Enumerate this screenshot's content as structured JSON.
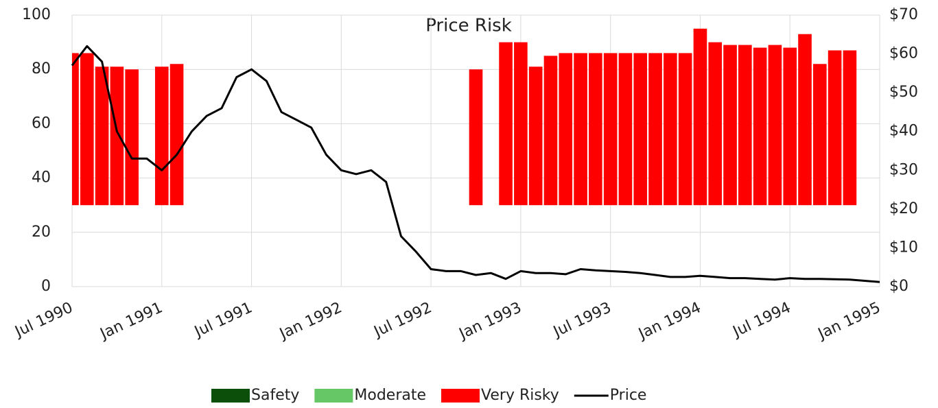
{
  "chart_data": {
    "type": "bar-line",
    "title": "Price Risk",
    "x": [
      "1990-07",
      "1990-08",
      "1990-09",
      "1990-10",
      "1990-11",
      "1990-12",
      "1991-01",
      "1991-02",
      "1991-03",
      "1991-04",
      "1991-05",
      "1991-06",
      "1991-07",
      "1991-08",
      "1991-09",
      "1991-10",
      "1991-11",
      "1991-12",
      "1992-01",
      "1992-02",
      "1992-03",
      "1992-04",
      "1992-05",
      "1992-06",
      "1992-07",
      "1992-08",
      "1992-09",
      "1992-10",
      "1992-11",
      "1992-12",
      "1993-01",
      "1993-02",
      "1993-03",
      "1993-04",
      "1993-05",
      "1993-06",
      "1993-07",
      "1993-08",
      "1993-09",
      "1993-10",
      "1993-11",
      "1993-12",
      "1994-01",
      "1994-02",
      "1994-03",
      "1994-04",
      "1994-05",
      "1994-06",
      "1994-07",
      "1994-08",
      "1994-09",
      "1994-10",
      "1994-11",
      "1994-12",
      "1995-01"
    ],
    "series": [
      {
        "name": "Safety",
        "color": "#0b4f0b",
        "kind": "bar",
        "values": [
          null,
          null,
          null,
          null,
          null,
          null,
          null,
          null,
          null,
          null,
          null,
          null,
          null,
          null,
          null,
          null,
          null,
          null,
          null,
          null,
          null,
          null,
          null,
          null,
          null,
          null,
          null,
          null,
          null,
          null,
          null,
          null,
          null,
          null,
          null,
          null,
          null,
          null,
          null,
          null,
          null,
          null,
          null,
          null,
          null,
          null,
          null,
          null,
          null,
          null,
          null,
          null,
          null,
          null,
          null
        ]
      },
      {
        "name": "Moderate",
        "color": "#66c766",
        "kind": "bar",
        "values": [
          null,
          null,
          null,
          null,
          null,
          null,
          null,
          null,
          null,
          null,
          null,
          null,
          null,
          null,
          null,
          null,
          null,
          null,
          null,
          null,
          null,
          null,
          null,
          null,
          null,
          null,
          null,
          null,
          null,
          null,
          null,
          null,
          null,
          null,
          null,
          null,
          null,
          null,
          null,
          null,
          null,
          null,
          null,
          null,
          null,
          null,
          null,
          null,
          null,
          null,
          null,
          null,
          null,
          null,
          null
        ]
      },
      {
        "name": "Very Risky",
        "color": "#ff0000",
        "kind": "bar",
        "values": [
          86,
          86,
          81,
          81,
          80,
          null,
          81,
          82,
          null,
          null,
          null,
          null,
          null,
          null,
          null,
          null,
          null,
          null,
          null,
          null,
          null,
          null,
          null,
          null,
          null,
          null,
          null,
          80,
          null,
          90,
          90,
          81,
          85,
          86,
          86,
          86,
          86,
          86,
          86,
          86,
          86,
          86,
          95,
          90,
          89,
          89,
          88,
          89,
          88,
          93,
          82,
          87,
          87,
          null,
          null
        ]
      },
      {
        "name": "Price",
        "color": "#000000",
        "kind": "line",
        "axis": "y2",
        "values": [
          57,
          62,
          58,
          40,
          33,
          33,
          30,
          34,
          40,
          44,
          46,
          54,
          56,
          53,
          45,
          43,
          41,
          34,
          30,
          29,
          30,
          27,
          13,
          9,
          4.5,
          4,
          4,
          3,
          3.5,
          2,
          4,
          3.5,
          3.5,
          3.2,
          4.5,
          4.2,
          4,
          3.8,
          3.5,
          3,
          2.5,
          2.5,
          2.8,
          2.5,
          2.2,
          2.2,
          2,
          1.8,
          2.2,
          2,
          2,
          1.9,
          1.8,
          1.5,
          1.2
        ]
      }
    ],
    "bar_base": 30,
    "xticks": [
      {
        "value": "1990-07",
        "label": "Jul 1990"
      },
      {
        "value": "1991-01",
        "label": "Jan 1991"
      },
      {
        "value": "1991-07",
        "label": "Jul 1991"
      },
      {
        "value": "1992-01",
        "label": "Jan 1992"
      },
      {
        "value": "1992-07",
        "label": "Jul 1992"
      },
      {
        "value": "1993-01",
        "label": "Jan 1993"
      },
      {
        "value": "1993-07",
        "label": "Jul 1993"
      },
      {
        "value": "1994-01",
        "label": "Jan 1994"
      },
      {
        "value": "1994-07",
        "label": "Jul 1994"
      },
      {
        "value": "1995-01",
        "label": "Jan 1995"
      }
    ],
    "ylim": [
      0,
      100
    ],
    "yticks": [
      0,
      20,
      40,
      60,
      80,
      100
    ],
    "y2lim": [
      0,
      70
    ],
    "y2ticks": [
      {
        "value": 0,
        "label": "$0"
      },
      {
        "value": 10,
        "label": "$10"
      },
      {
        "value": 20,
        "label": "$20"
      },
      {
        "value": 30,
        "label": "$30"
      },
      {
        "value": 40,
        "label": "$40"
      },
      {
        "value": 50,
        "label": "$50"
      },
      {
        "value": 60,
        "label": "$60"
      },
      {
        "value": 70,
        "label": "$70"
      }
    ],
    "grid": true,
    "legend": "bottom"
  }
}
